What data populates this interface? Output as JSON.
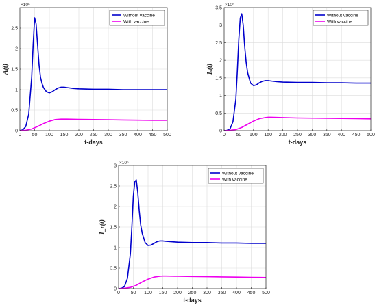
{
  "chart_data": [
    {
      "type": "line",
      "xlabel": "t-days",
      "ylabel": "A(t)",
      "exponent_label": "×10⁶",
      "xlim": [
        0,
        500
      ],
      "ylim": [
        0,
        3.0
      ],
      "xticks": [
        0,
        50,
        100,
        150,
        200,
        250,
        300,
        350,
        400,
        450,
        500
      ],
      "yticks": [
        0,
        0.5,
        1,
        1.5,
        2,
        2.5
      ],
      "grid": true,
      "legend_position": "top-right",
      "series": [
        {
          "name": "Without vaccine",
          "color": "#0000cc",
          "x": [
            0,
            10,
            20,
            30,
            40,
            45,
            50,
            55,
            60,
            65,
            70,
            75,
            80,
            90,
            100,
            110,
            120,
            130,
            140,
            150,
            160,
            180,
            200,
            250,
            300,
            350,
            400,
            450,
            500
          ],
          "y": [
            0,
            0.02,
            0.1,
            0.4,
            1.3,
            2.1,
            2.75,
            2.6,
            2.1,
            1.6,
            1.3,
            1.15,
            1.05,
            0.95,
            0.92,
            0.95,
            1.0,
            1.04,
            1.06,
            1.06,
            1.05,
            1.03,
            1.02,
            1.01,
            1.01,
            1.0,
            1.0,
            1.0,
            1.0
          ]
        },
        {
          "name": "With vaccine",
          "color": "#ee00ee",
          "x": [
            0,
            20,
            40,
            60,
            80,
            100,
            120,
            140,
            150,
            160,
            200,
            250,
            300,
            350,
            400,
            450,
            500
          ],
          "y": [
            0,
            0.01,
            0.04,
            0.1,
            0.17,
            0.23,
            0.27,
            0.28,
            0.28,
            0.28,
            0.275,
            0.27,
            0.265,
            0.26,
            0.255,
            0.25,
            0.25
          ]
        }
      ]
    },
    {
      "type": "line",
      "xlabel": "t-days",
      "ylabel": "Iᵤ(t)",
      "exponent_label": "×10⁶",
      "xlim": [
        0,
        500
      ],
      "ylim": [
        0,
        3.5
      ],
      "xticks": [
        0,
        50,
        100,
        150,
        200,
        250,
        300,
        350,
        400,
        450,
        500
      ],
      "yticks": [
        0,
        0.5,
        1,
        1.5,
        2,
        2.5,
        3,
        3.5
      ],
      "grid": true,
      "legend_position": "top-right",
      "series": [
        {
          "name": "Without vaccine",
          "color": "#0000cc",
          "x": [
            0,
            10,
            20,
            30,
            40,
            45,
            50,
            55,
            60,
            65,
            70,
            75,
            80,
            90,
            100,
            110,
            120,
            130,
            140,
            150,
            160,
            180,
            200,
            250,
            300,
            350,
            400,
            450,
            500
          ],
          "y": [
            0,
            0.01,
            0.05,
            0.25,
            0.9,
            1.7,
            2.6,
            3.2,
            3.32,
            3.0,
            2.4,
            1.95,
            1.65,
            1.35,
            1.28,
            1.3,
            1.36,
            1.4,
            1.42,
            1.42,
            1.41,
            1.39,
            1.38,
            1.37,
            1.37,
            1.36,
            1.36,
            1.35,
            1.35
          ]
        },
        {
          "name": "With vaccine",
          "color": "#ee00ee",
          "x": [
            0,
            20,
            40,
            60,
            80,
            100,
            120,
            140,
            150,
            160,
            200,
            250,
            300,
            350,
            400,
            450,
            500
          ],
          "y": [
            0,
            0.01,
            0.03,
            0.09,
            0.18,
            0.27,
            0.34,
            0.37,
            0.38,
            0.38,
            0.37,
            0.36,
            0.355,
            0.35,
            0.345,
            0.34,
            0.335
          ]
        }
      ]
    },
    {
      "type": "line",
      "xlabel": "t-days",
      "ylabel": "I_r(t)",
      "exponent_label": "×10⁶",
      "xlim": [
        0,
        500
      ],
      "ylim": [
        0,
        3.0
      ],
      "xticks": [
        0,
        50,
        100,
        150,
        200,
        250,
        300,
        350,
        400,
        450,
        500
      ],
      "yticks": [
        0,
        0.5,
        1,
        1.5,
        2,
        2.5,
        3
      ],
      "grid": true,
      "legend_position": "top-right",
      "series": [
        {
          "name": "Without vaccine",
          "color": "#0000cc",
          "x": [
            0,
            10,
            20,
            30,
            40,
            45,
            50,
            55,
            60,
            65,
            70,
            75,
            80,
            90,
            100,
            110,
            120,
            130,
            140,
            150,
            160,
            180,
            200,
            250,
            300,
            350,
            400,
            450,
            500
          ],
          "y": [
            0,
            0.01,
            0.05,
            0.25,
            0.85,
            1.5,
            2.25,
            2.6,
            2.65,
            2.35,
            1.9,
            1.55,
            1.35,
            1.12,
            1.05,
            1.06,
            1.1,
            1.14,
            1.16,
            1.16,
            1.15,
            1.14,
            1.13,
            1.12,
            1.12,
            1.11,
            1.11,
            1.1,
            1.1
          ]
        },
        {
          "name": "With vaccine",
          "color": "#ee00ee",
          "x": [
            0,
            20,
            40,
            60,
            80,
            100,
            120,
            140,
            150,
            160,
            200,
            250,
            300,
            350,
            400,
            450,
            500
          ],
          "y": [
            0,
            0.01,
            0.03,
            0.08,
            0.16,
            0.23,
            0.28,
            0.3,
            0.305,
            0.305,
            0.3,
            0.295,
            0.29,
            0.285,
            0.28,
            0.275,
            0.27
          ]
        }
      ]
    }
  ]
}
